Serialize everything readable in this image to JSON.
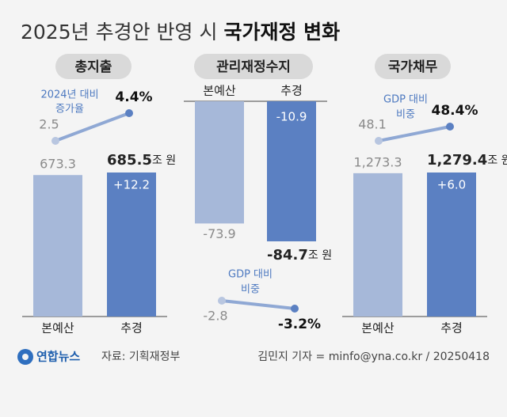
{
  "title": {
    "light": "2025년 추경안 반영 시",
    "bold": "국가재정 변화"
  },
  "chart_data": [
    {
      "type": "bar",
      "title": "총지출",
      "categories": [
        "본예산",
        "추경"
      ],
      "values": [
        673.3,
        685.5
      ],
      "unit": "조 원",
      "change_label": "+12.2",
      "colors": [
        "#a6b8d9",
        "#5b80c2"
      ],
      "inset": {
        "type": "line",
        "label": [
          "2024년 대비",
          "증가율"
        ],
        "values": [
          2.5,
          4.4
        ],
        "value_labels": [
          "2.5",
          "4.4%"
        ],
        "color": "#5b80c2"
      }
    },
    {
      "type": "bar",
      "title": "관리재정수지",
      "categories": [
        "본예산",
        "추경"
      ],
      "values": [
        -73.9,
        -84.7
      ],
      "unit": "조 원",
      "change_label": "-10.9",
      "colors": [
        "#a6b8d9",
        "#5b80c2"
      ],
      "inset": {
        "type": "line",
        "label": [
          "GDP 대비",
          "비중"
        ],
        "values": [
          -2.8,
          -3.2
        ],
        "value_labels": [
          "-2.8",
          "-3.2%"
        ],
        "color": "#5b80c2"
      }
    },
    {
      "type": "bar",
      "title": "국가채무",
      "categories": [
        "본예산",
        "추경"
      ],
      "values": [
        1273.3,
        1279.4
      ],
      "value_labels": [
        "1,273.3",
        "1,279.4"
      ],
      "unit": "조 원",
      "change_label": "+6.0",
      "colors": [
        "#a6b8d9",
        "#5b80c2"
      ],
      "inset": {
        "type": "line",
        "label": [
          "GDP 대비",
          "비중"
        ],
        "values": [
          48.1,
          48.4
        ],
        "value_labels": [
          "48.1",
          "48.4%"
        ],
        "color": "#5b80c2"
      }
    }
  ],
  "footer": {
    "logo": "연합뉴스",
    "source": "자료: 기획재정부",
    "credit": "김민지 기자 = minfo@yna.co.kr / 20250418"
  }
}
